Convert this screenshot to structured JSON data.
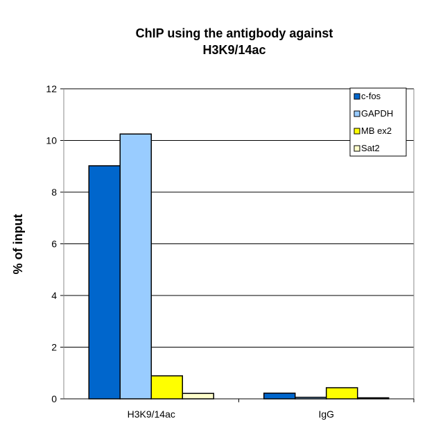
{
  "chart_data": {
    "type": "bar",
    "title": [
      "ChIP using the antigbody against",
      "H3K9/14ac"
    ],
    "xlabel": "",
    "ylabel": "% of input",
    "ylim": [
      0,
      12
    ],
    "yticks": [
      "0",
      "2",
      "4",
      "6",
      "8",
      "10",
      "12"
    ],
    "grid": true,
    "legend_position": "top-right",
    "categories": [
      "H3K9/14ac",
      "IgG"
    ],
    "series": [
      {
        "name": "c-fos",
        "color": "#0066CC",
        "values": [
          9.02,
          0.22
        ]
      },
      {
        "name": "GAPDH",
        "color": "#99CCFF",
        "values": [
          10.25,
          0.06
        ]
      },
      {
        "name": "MB ex2",
        "color": "#FFFF00",
        "values": [
          0.89,
          0.43
        ]
      },
      {
        "name": "Sat2",
        "color": "#FFFFCC",
        "values": [
          0.21,
          0.04
        ]
      }
    ]
  }
}
